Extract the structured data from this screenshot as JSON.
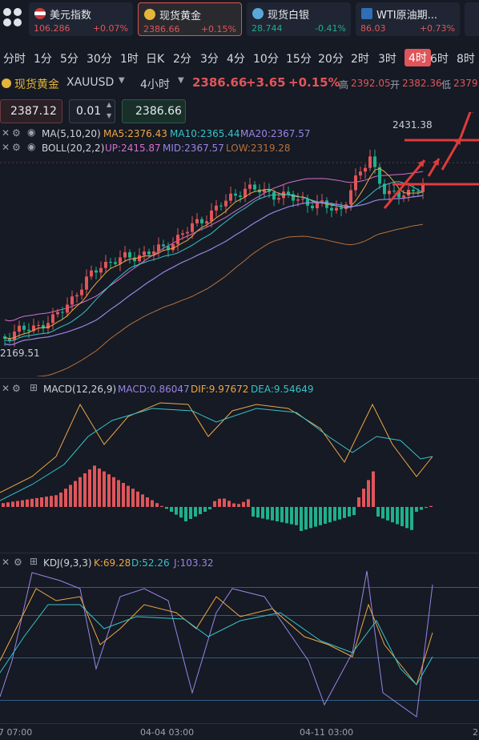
{
  "tickers": [
    {
      "name": "美元指数",
      "price": "106.286",
      "change": "+0.07%",
      "dir": "up",
      "icon": "us-flag-icon"
    },
    {
      "name": "现货黄金",
      "price": "2386.66",
      "change": "+0.15%",
      "dir": "up",
      "icon": "gold-icon"
    },
    {
      "name": "现货白银",
      "price": "28.744",
      "change": "-0.41%",
      "dir": "dn",
      "icon": "silver-icon"
    },
    {
      "name": "WTI原油期...",
      "price": "86.03",
      "change": "+0.73%",
      "dir": "up",
      "icon": "oil-icon"
    }
  ],
  "timeframes": [
    "分时",
    "1分",
    "5分",
    "30分",
    "1时",
    "日K",
    "2分",
    "3分",
    "4分",
    "10分",
    "15分",
    "20分",
    "2时",
    "3时",
    "4时",
    "6时",
    "8时"
  ],
  "selected_timeframe": "4时",
  "symbol": {
    "name": "现货黄金",
    "code": "XAUUSD",
    "interval": "4小时",
    "price": "2386.66",
    "change": "+3.65",
    "pct": "+0.15%",
    "high_label": "高",
    "high": "2392.05",
    "open_label": "开",
    "open": "2382.36",
    "low_label": "低",
    "low": "2379."
  },
  "order": {
    "sell_price": "2387.12",
    "qty": "0.01",
    "buy_price": "2386.66"
  },
  "main_indicators": {
    "ma": {
      "name": "MA(5,10,20)",
      "ma5": "MA5:2376.43",
      "ma10": "MA10:2365.44",
      "ma20": "MA20:2367.57"
    },
    "boll": {
      "name": "BOLL(20,2,2)",
      "up": "UP:2415.87",
      "mid": "MID:2367.57",
      "low": "LOW:2319.28"
    }
  },
  "macd": {
    "name": "MACD(12,26,9)",
    "macd": "MACD:0.86047",
    "dif": "DIF:9.97672",
    "dea": "DEA:9.54649"
  },
  "kdj": {
    "name": "KDJ(9,3,3)",
    "k": "K:69.28",
    "d": "D:52.26",
    "j": "J:103.32"
  },
  "labels": {
    "peak": "2431.38",
    "trough": "2169.51"
  },
  "xaxis": [
    "7 07:00",
    "04-04 03:00",
    "04-11 03:00",
    "2"
  ],
  "colors": {
    "up": "#e0555a",
    "down": "#1fb08d",
    "ma5": "#f0a644",
    "ma10": "#36c3c9",
    "ma20": "#9b83e6",
    "boll_up": "#d56fd0",
    "boll_low": "#b7703d",
    "grid": "#2f5e86"
  }
}
